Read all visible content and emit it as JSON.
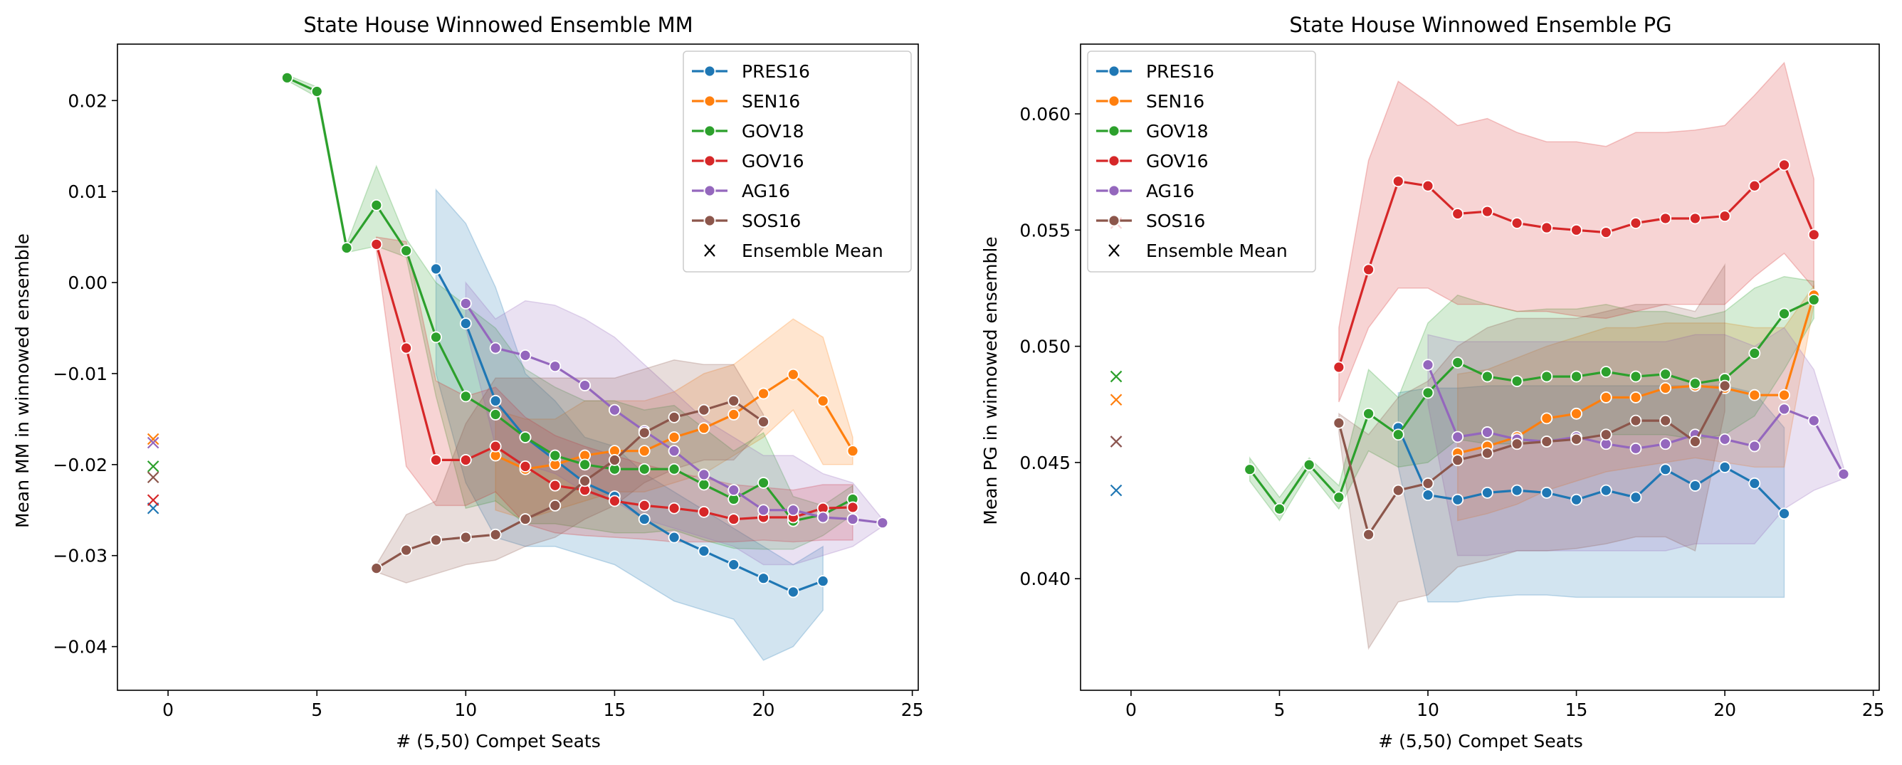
{
  "chart_data": [
    {
      "type": "line",
      "title": "State House Winnowed Ensemble MM",
      "xlabel": "# (5,50) Compet Seats",
      "ylabel": "Mean MM in winnowed ensemble",
      "xlim": [
        -1.7,
        25.2
      ],
      "ylim": [
        -0.0448,
        0.0262
      ],
      "xticks": [
        0,
        5,
        10,
        15,
        20,
        25
      ],
      "xtick_labels": [
        "0",
        "5",
        "10",
        "15",
        "20",
        "25"
      ],
      "yticks": [
        -0.04,
        -0.03,
        -0.02,
        -0.01,
        0.0,
        0.01,
        0.02
      ],
      "ytick_labels": [
        "−0.04",
        "−0.03",
        "−0.02",
        "−0.01",
        "0.00",
        "0.01",
        "0.02"
      ],
      "legend_position": "top-right",
      "legend_entries": [
        "PRES16",
        "SEN16",
        "GOV18",
        "GOV16",
        "AG16",
        "SOS16",
        "Ensemble Mean"
      ],
      "grid": false,
      "series": [
        {
          "name": "PRES16",
          "color": "#1f77b4",
          "x": [
            9,
            10,
            11,
            12,
            13,
            14,
            15,
            16,
            17,
            18,
            19,
            20,
            21,
            22
          ],
          "y": [
            0.0015,
            -0.0045,
            -0.013,
            -0.017,
            -0.0195,
            -0.022,
            -0.0235,
            -0.026,
            -0.028,
            -0.0295,
            -0.031,
            -0.0325,
            -0.034,
            -0.0328
          ],
          "lower": [
            -0.01,
            -0.022,
            -0.028,
            -0.029,
            -0.029,
            -0.03,
            -0.031,
            -0.033,
            -0.035,
            -0.036,
            -0.037,
            -0.0415,
            -0.04,
            -0.036
          ],
          "upper": [
            0.0102,
            0.0065,
            -0.0005,
            -0.01,
            -0.013,
            -0.017,
            -0.018,
            -0.021,
            -0.023,
            -0.025,
            -0.027,
            -0.029,
            -0.031,
            -0.029
          ],
          "ensemble_mean": -0.0248
        },
        {
          "name": "SEN16",
          "color": "#ff7f0e",
          "x": [
            11,
            12,
            13,
            14,
            15,
            16,
            17,
            18,
            19,
            20,
            21,
            22,
            23
          ],
          "y": [
            -0.019,
            -0.0205,
            -0.02,
            -0.019,
            -0.0185,
            -0.0185,
            -0.017,
            -0.016,
            -0.0145,
            -0.0122,
            -0.0101,
            -0.013,
            -0.0185
          ],
          "lower": [
            -0.025,
            -0.026,
            -0.025,
            -0.024,
            -0.023,
            -0.023,
            -0.022,
            -0.021,
            -0.019,
            -0.017,
            -0.014,
            -0.02,
            -0.02
          ],
          "upper": [
            -0.014,
            -0.015,
            -0.015,
            -0.013,
            -0.013,
            -0.013,
            -0.012,
            -0.01,
            -0.009,
            -0.0065,
            -0.004,
            -0.006,
            -0.017
          ],
          "ensemble_mean": -0.0172
        },
        {
          "name": "GOV18",
          "color": "#2ca02c",
          "x": [
            4,
            5,
            6,
            7,
            8,
            9,
            10,
            11,
            12,
            13,
            14,
            15,
            16,
            17,
            18,
            19,
            20,
            21,
            22,
            23
          ],
          "y": [
            0.0225,
            0.021,
            0.0038,
            0.0085,
            0.0035,
            -0.006,
            -0.0125,
            -0.0145,
            -0.017,
            -0.019,
            -0.02,
            -0.0205,
            -0.0205,
            -0.0205,
            -0.0222,
            -0.0238,
            -0.022,
            -0.0262,
            -0.0255,
            -0.0238
          ],
          "lower": [
            0.0222,
            0.0204,
            0.0033,
            0.004,
            0.0028,
            -0.0125,
            -0.0248,
            -0.024,
            -0.0265,
            -0.0265,
            -0.027,
            -0.0275,
            -0.0275,
            -0.0272,
            -0.0283,
            -0.0292,
            -0.0293,
            -0.0293,
            -0.0278,
            -0.0255
          ],
          "upper": [
            0.0228,
            0.0215,
            0.0042,
            0.0128,
            0.0048,
            0.0,
            -0.0025,
            -0.005,
            -0.0095,
            -0.0115,
            -0.013,
            -0.013,
            -0.014,
            -0.0135,
            -0.016,
            -0.0185,
            -0.0165,
            -0.0235,
            -0.0245,
            -0.0223
          ],
          "ensemble_mean": -0.0202
        },
        {
          "name": "GOV16",
          "color": "#d62728",
          "x": [
            7,
            8,
            9,
            10,
            11,
            12,
            13,
            14,
            15,
            16,
            17,
            18,
            19,
            20,
            21,
            22,
            23
          ],
          "y": [
            0.0042,
            -0.0072,
            -0.0195,
            -0.0195,
            -0.018,
            -0.0202,
            -0.0223,
            -0.0228,
            -0.024,
            -0.0245,
            -0.0248,
            -0.0252,
            -0.026,
            -0.0258,
            -0.0258,
            -0.0248,
            -0.0247
          ],
          "lower": [
            0.0035,
            -0.0202,
            -0.0245,
            -0.0245,
            -0.023,
            -0.0265,
            -0.0275,
            -0.0278,
            -0.028,
            -0.0282,
            -0.0285,
            -0.0285,
            -0.0285,
            -0.0283,
            -0.0285,
            -0.0283,
            -0.0283
          ],
          "upper": [
            0.005,
            0.0045,
            -0.0108,
            -0.0125,
            -0.0115,
            -0.0148,
            -0.0168,
            -0.018,
            -0.019,
            -0.02,
            -0.0208,
            -0.0215,
            -0.0222,
            -0.0225,
            -0.0228,
            -0.0222,
            -0.0222
          ],
          "ensemble_mean": -0.0239
        },
        {
          "name": "AG16",
          "color": "#9467bd",
          "x": [
            10,
            11,
            12,
            13,
            14,
            15,
            16,
            17,
            18,
            19,
            20,
            21,
            22,
            23,
            24
          ],
          "y": [
            -0.0023,
            -0.0072,
            -0.008,
            -0.0092,
            -0.0113,
            -0.014,
            -0.0163,
            -0.0185,
            -0.0211,
            -0.0228,
            -0.025,
            -0.025,
            -0.0258,
            -0.026,
            -0.0264
          ],
          "lower": [
            -0.005,
            -0.018,
            -0.02,
            -0.021,
            -0.023,
            -0.024,
            -0.026,
            -0.027,
            -0.028,
            -0.029,
            -0.031,
            -0.031,
            -0.03,
            -0.029,
            -0.0268
          ],
          "upper": [
            0.0,
            -0.004,
            -0.002,
            -0.0025,
            -0.004,
            -0.006,
            -0.009,
            -0.012,
            -0.015,
            -0.017,
            -0.019,
            -0.019,
            -0.021,
            -0.022,
            -0.026
          ],
          "ensemble_mean": -0.0176
        },
        {
          "name": "SOS16",
          "color": "#8c564b",
          "x": [
            7,
            8,
            9,
            10,
            11,
            12,
            13,
            14,
            15,
            16,
            17,
            18,
            19,
            20
          ],
          "y": [
            -0.0314,
            -0.0294,
            -0.0283,
            -0.028,
            -0.0277,
            -0.026,
            -0.0245,
            -0.0218,
            -0.0195,
            -0.0165,
            -0.0148,
            -0.014,
            -0.013,
            -0.0153
          ],
          "lower": [
            -0.0318,
            -0.033,
            -0.032,
            -0.031,
            -0.0305,
            -0.029,
            -0.028,
            -0.026,
            -0.0245,
            -0.022,
            -0.0205,
            -0.0195,
            -0.0195,
            -0.016
          ],
          "upper": [
            -0.031,
            -0.0255,
            -0.024,
            -0.0155,
            -0.0105,
            -0.0105,
            -0.0105,
            -0.0105,
            -0.0105,
            -0.0095,
            -0.0085,
            -0.009,
            -0.009,
            -0.0145
          ],
          "ensemble_mean": -0.0214
        }
      ]
    },
    {
      "type": "line",
      "title": "State House Winnowed Ensemble PG",
      "xlabel": "# (5,50) Compet Seats",
      "ylabel": "Mean PG in winnowed ensemble",
      "xlim": [
        -1.7,
        25.2
      ],
      "ylim": [
        0.0352,
        0.063
      ],
      "xticks": [
        0,
        5,
        10,
        15,
        20,
        25
      ],
      "xtick_labels": [
        "0",
        "5",
        "10",
        "15",
        "20",
        "25"
      ],
      "yticks": [
        0.04,
        0.045,
        0.05,
        0.055,
        0.06
      ],
      "ytick_labels": [
        "0.040",
        "0.045",
        "0.050",
        "0.055",
        "0.060"
      ],
      "legend_position": "top-left",
      "legend_entries": [
        "PRES16",
        "SEN16",
        "GOV18",
        "GOV16",
        "AG16",
        "SOS16",
        "Ensemble Mean"
      ],
      "grid": false,
      "series": [
        {
          "name": "PRES16",
          "color": "#1f77b4",
          "x": [
            9,
            10,
            11,
            12,
            13,
            14,
            15,
            16,
            17,
            18,
            19,
            20,
            21,
            22
          ],
          "y": [
            0.0465,
            0.0436,
            0.0434,
            0.0437,
            0.0438,
            0.0437,
            0.0434,
            0.0438,
            0.0435,
            0.0447,
            0.044,
            0.0448,
            0.0441,
            0.0428
          ],
          "lower": [
            0.0448,
            0.039,
            0.039,
            0.0392,
            0.0393,
            0.0393,
            0.0392,
            0.0392,
            0.0392,
            0.0392,
            0.0392,
            0.0392,
            0.0392,
            0.0392
          ],
          "upper": [
            0.048,
            0.0482,
            0.0482,
            0.0483,
            0.0483,
            0.0483,
            0.0483,
            0.0483,
            0.0483,
            0.0483,
            0.0483,
            0.0483,
            0.048,
            0.0465
          ],
          "ensemble_mean": 0.0438
        },
        {
          "name": "SEN16",
          "color": "#ff7f0e",
          "x": [
            11,
            12,
            13,
            14,
            15,
            16,
            17,
            18,
            19,
            20,
            21,
            22,
            23
          ],
          "y": [
            0.0454,
            0.0457,
            0.0461,
            0.0469,
            0.0471,
            0.0478,
            0.0478,
            0.0482,
            0.0483,
            0.0482,
            0.0479,
            0.0479,
            0.0522
          ],
          "lower": [
            0.0425,
            0.0428,
            0.0432,
            0.0438,
            0.0442,
            0.0446,
            0.0448,
            0.045,
            0.0452,
            0.045,
            0.0448,
            0.0448,
            0.0518
          ],
          "upper": [
            0.0488,
            0.049,
            0.0495,
            0.05,
            0.0504,
            0.0508,
            0.0508,
            0.051,
            0.051,
            0.051,
            0.0508,
            0.0508,
            0.0526
          ],
          "ensemble_mean": 0.0477
        },
        {
          "name": "GOV18",
          "color": "#2ca02c",
          "x": [
            4,
            5,
            6,
            7,
            8,
            9,
            10,
            11,
            12,
            13,
            14,
            15,
            16,
            17,
            18,
            19,
            20,
            21,
            22,
            23
          ],
          "y": [
            0.0447,
            0.043,
            0.0449,
            0.0435,
            0.0471,
            0.0462,
            0.048,
            0.0493,
            0.0487,
            0.0485,
            0.0487,
            0.0487,
            0.0489,
            0.0487,
            0.0488,
            0.0484,
            0.0486,
            0.0497,
            0.0514,
            0.052
          ],
          "lower": [
            0.0442,
            0.0425,
            0.0446,
            0.043,
            0.0455,
            0.0448,
            0.045,
            0.046,
            0.0458,
            0.0458,
            0.046,
            0.046,
            0.0462,
            0.0462,
            0.0462,
            0.046,
            0.0462,
            0.047,
            0.049,
            0.0512
          ],
          "upper": [
            0.0452,
            0.0435,
            0.0452,
            0.044,
            0.049,
            0.0478,
            0.051,
            0.0522,
            0.0518,
            0.0515,
            0.0516,
            0.0516,
            0.0518,
            0.0515,
            0.0515,
            0.0512,
            0.0515,
            0.0525,
            0.053,
            0.0528
          ],
          "ensemble_mean": 0.0487
        },
        {
          "name": "GOV16",
          "color": "#d62728",
          "x": [
            7,
            8,
            9,
            10,
            11,
            12,
            13,
            14,
            15,
            16,
            17,
            18,
            19,
            20,
            21,
            22,
            23
          ],
          "y": [
            0.0491,
            0.0533,
            0.0571,
            0.0569,
            0.0557,
            0.0558,
            0.0553,
            0.0551,
            0.055,
            0.0549,
            0.0553,
            0.0555,
            0.0555,
            0.0556,
            0.0569,
            0.0578,
            0.0548
          ],
          "lower": [
            0.0476,
            0.0508,
            0.0525,
            0.0525,
            0.0518,
            0.0518,
            0.0515,
            0.0515,
            0.0513,
            0.0512,
            0.0515,
            0.0518,
            0.0518,
            0.0518,
            0.053,
            0.054,
            0.0525
          ],
          "upper": [
            0.0508,
            0.058,
            0.0614,
            0.0605,
            0.0595,
            0.0598,
            0.0592,
            0.0588,
            0.0588,
            0.0586,
            0.0592,
            0.0592,
            0.0593,
            0.0595,
            0.0608,
            0.0622,
            0.0572
          ],
          "ensemble_mean": 0.0553
        },
        {
          "name": "AG16",
          "color": "#9467bd",
          "x": [
            10,
            11,
            12,
            13,
            14,
            15,
            16,
            17,
            18,
            19,
            20,
            21,
            22,
            23,
            24
          ],
          "y": [
            0.0492,
            0.0461,
            0.0463,
            0.046,
            0.0459,
            0.0461,
            0.0458,
            0.0456,
            0.0458,
            0.0462,
            0.046,
            0.0457,
            0.0473,
            0.0468,
            0.0445
          ],
          "lower": [
            0.0475,
            0.041,
            0.041,
            0.0412,
            0.0412,
            0.0412,
            0.0412,
            0.0412,
            0.0412,
            0.0415,
            0.0415,
            0.0415,
            0.043,
            0.0438,
            0.0443
          ],
          "upper": [
            0.0505,
            0.0502,
            0.0502,
            0.0502,
            0.0502,
            0.0502,
            0.0502,
            0.0502,
            0.0502,
            0.0505,
            0.0505,
            0.05,
            0.0508,
            0.049,
            0.0448
          ],
          "ensemble_mean": 0.0459
        },
        {
          "name": "SOS16",
          "color": "#8c564b",
          "x": [
            7,
            8,
            9,
            10,
            11,
            12,
            13,
            14,
            15,
            16,
            17,
            18,
            19,
            20
          ],
          "y": [
            0.0467,
            0.0419,
            0.0438,
            0.0441,
            0.0451,
            0.0454,
            0.0458,
            0.0459,
            0.046,
            0.0462,
            0.0468,
            0.0468,
            0.0459,
            0.0483
          ],
          "lower": [
            0.0463,
            0.037,
            0.039,
            0.0393,
            0.0405,
            0.0408,
            0.0412,
            0.0412,
            0.0413,
            0.0415,
            0.0418,
            0.0418,
            0.0412,
            0.0472
          ],
          "upper": [
            0.0471,
            0.0462,
            0.0478,
            0.0485,
            0.05,
            0.0508,
            0.0512,
            0.0512,
            0.0512,
            0.0515,
            0.0518,
            0.0518,
            0.0515,
            0.0535
          ],
          "ensemble_mean": 0.0459
        }
      ]
    }
  ]
}
